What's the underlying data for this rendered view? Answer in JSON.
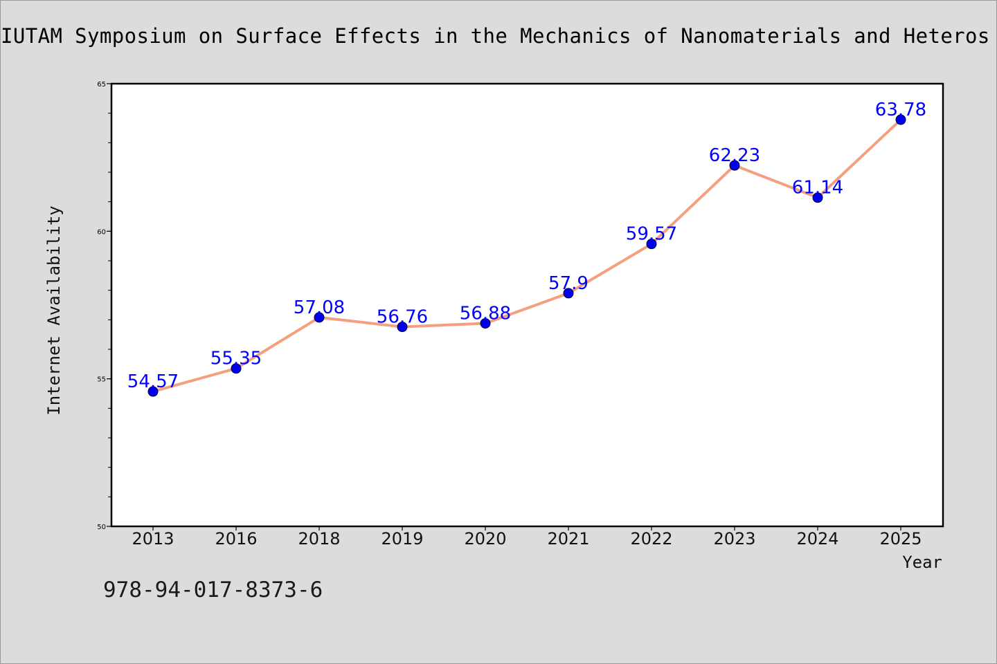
{
  "title": "IUTAM Symposium on Surface Effects in the Mechanics of Nanomaterials and Heteros",
  "footer": "978-94-017-8373-6",
  "chart_data": {
    "type": "line",
    "categories": [
      "2013",
      "2016",
      "2018",
      "2019",
      "2020",
      "2021",
      "2022",
      "2023",
      "2024",
      "2025"
    ],
    "series": [
      {
        "values": [
          54.57,
          55.35,
          57.08,
          56.76,
          56.88,
          57.9,
          59.57,
          62.23,
          61.14,
          63.78
        ]
      }
    ],
    "data_labels": [
      "54.57",
      "55.35",
      "57.08",
      "56.76",
      "56.88",
      "57.9",
      "59.57",
      "62.23",
      "61.14",
      "63.78"
    ],
    "xlabel": "Year",
    "ylabel": "Internet Availability",
    "ylim": [
      50,
      65
    ],
    "yticks": [
      "50",
      "55",
      "60",
      "65"
    ],
    "grid": false,
    "colors": {
      "line": "#f4a07e",
      "marker": "#0000ee",
      "label": "#0000ff",
      "plot_background": "#ffffff",
      "figure_background": "#dcdcdc"
    }
  }
}
